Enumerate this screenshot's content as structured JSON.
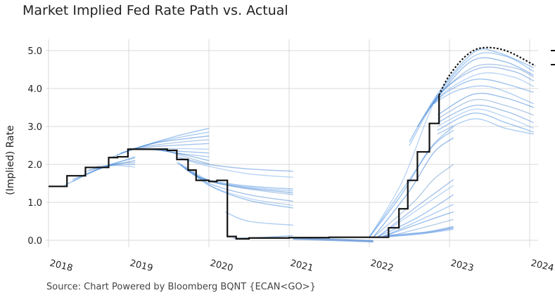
{
  "chart_data": {
    "type": "line",
    "title": "Market Implied Fed Rate Path vs. Actual",
    "ylabel": "(Implied) Rate",
    "xlabel": "",
    "source": "Source: Chart Powered by Bloomberg BQNT    {ECAN<GO>}",
    "xlim": [
      2018,
      2024
    ],
    "ylim": [
      -0.1,
      5.2
    ],
    "x_ticks": [
      "2018",
      "2019",
      "2020",
      "2021",
      "2022",
      "2023",
      "2024"
    ],
    "y_ticks": [
      "0.0",
      "1.0",
      "2.0",
      "3.0",
      "4.0",
      "5.0"
    ],
    "grid": true,
    "legend": "right (cropped)",
    "colors": {
      "actual": "#111111",
      "implied": "#2f7fdc",
      "projection": "#111111"
    },
    "actual_step": [
      [
        2018.0,
        1.42
      ],
      [
        2018.23,
        1.7
      ],
      [
        2018.46,
        1.92
      ],
      [
        2018.75,
        2.18
      ],
      [
        2018.86,
        2.2
      ],
      [
        2018.99,
        2.4
      ],
      [
        2019.48,
        2.37
      ],
      [
        2019.6,
        2.13
      ],
      [
        2019.74,
        1.85
      ],
      [
        2019.84,
        1.58
      ],
      [
        2020.0,
        1.55
      ],
      [
        2020.1,
        1.58
      ],
      [
        2020.23,
        0.1
      ],
      [
        2020.34,
        0.04
      ],
      [
        2020.5,
        0.06
      ],
      [
        2021.0,
        0.07
      ],
      [
        2021.5,
        0.08
      ],
      [
        2022.24,
        0.33
      ],
      [
        2022.37,
        0.83
      ],
      [
        2022.48,
        1.58
      ],
      [
        2022.6,
        2.33
      ],
      [
        2022.75,
        3.08
      ],
      [
        2022.87,
        3.83
      ]
    ],
    "projection": [
      [
        2022.87,
        3.83
      ],
      [
        2023.0,
        4.35
      ],
      [
        2023.2,
        4.85
      ],
      [
        2023.4,
        5.07
      ],
      [
        2023.7,
        5.0
      ],
      [
        2024.07,
        4.6
      ]
    ],
    "implied_paths": [
      [
        [
          2018.2,
          1.45
        ],
        [
          2018.6,
          1.85
        ],
        [
          2019.08,
          2.2
        ]
      ],
      [
        [
          2018.3,
          1.55
        ],
        [
          2018.7,
          1.95
        ],
        [
          2019.08,
          2.17
        ]
      ],
      [
        [
          2018.3,
          1.6
        ],
        [
          2018.7,
          1.93
        ],
        [
          2019.08,
          2.1
        ]
      ],
      [
        [
          2018.45,
          1.8
        ],
        [
          2018.8,
          2.0
        ],
        [
          2019.08,
          2.05
        ]
      ],
      [
        [
          2018.5,
          1.85
        ],
        [
          2018.8,
          1.98
        ],
        [
          2019.08,
          2.0
        ]
      ],
      [
        [
          2018.6,
          1.95
        ],
        [
          2018.85,
          1.97
        ],
        [
          2019.08,
          1.93
        ]
      ],
      [
        [
          2018.8,
          2.2
        ],
        [
          2019.2,
          2.5
        ],
        [
          2019.6,
          2.75
        ],
        [
          2020.0,
          2.95
        ]
      ],
      [
        [
          2018.85,
          2.25
        ],
        [
          2019.2,
          2.5
        ],
        [
          2019.6,
          2.7
        ],
        [
          2020.0,
          2.85
        ]
      ],
      [
        [
          2018.9,
          2.3
        ],
        [
          2019.3,
          2.55
        ],
        [
          2019.6,
          2.65
        ],
        [
          2020.0,
          2.75
        ]
      ],
      [
        [
          2019.0,
          2.4
        ],
        [
          2019.3,
          2.5
        ],
        [
          2019.7,
          2.6
        ],
        [
          2020.0,
          2.65
        ]
      ],
      [
        [
          2019.05,
          2.4
        ],
        [
          2019.4,
          2.48
        ],
        [
          2020.0,
          2.55
        ]
      ],
      [
        [
          2019.1,
          2.4
        ],
        [
          2019.5,
          2.42
        ],
        [
          2020.0,
          2.4
        ]
      ],
      [
        [
          2019.2,
          2.4
        ],
        [
          2019.6,
          2.35
        ],
        [
          2020.0,
          2.3
        ]
      ],
      [
        [
          2019.3,
          2.4
        ],
        [
          2019.6,
          2.3
        ],
        [
          2020.0,
          2.2
        ]
      ],
      [
        [
          2019.4,
          2.38
        ],
        [
          2019.7,
          2.25
        ],
        [
          2020.0,
          2.1
        ]
      ],
      [
        [
          2019.45,
          2.38
        ],
        [
          2019.7,
          2.2
        ],
        [
          2020.0,
          2.02
        ]
      ],
      [
        [
          2019.6,
          2.2
        ],
        [
          2020.0,
          2.0
        ],
        [
          2020.5,
          1.88
        ],
        [
          2021.05,
          1.82
        ]
      ],
      [
        [
          2019.65,
          2.15
        ],
        [
          2020.0,
          1.95
        ],
        [
          2020.5,
          1.75
        ],
        [
          2021.05,
          1.66
        ]
      ],
      [
        [
          2019.6,
          2.05
        ],
        [
          2019.9,
          1.65
        ],
        [
          2020.4,
          1.45
        ],
        [
          2021.05,
          1.35
        ]
      ],
      [
        [
          2019.62,
          2.05
        ],
        [
          2019.9,
          1.63
        ],
        [
          2020.4,
          1.42
        ],
        [
          2021.05,
          1.3
        ]
      ],
      [
        [
          2019.65,
          2.0
        ],
        [
          2019.95,
          1.6
        ],
        [
          2020.4,
          1.4
        ],
        [
          2021.05,
          1.25
        ]
      ],
      [
        [
          2019.7,
          1.95
        ],
        [
          2020.0,
          1.58
        ],
        [
          2020.4,
          1.38
        ],
        [
          2021.05,
          1.2
        ]
      ],
      [
        [
          2019.7,
          1.9
        ],
        [
          2020.0,
          1.5
        ],
        [
          2020.5,
          1.2
        ],
        [
          2021.05,
          1.03
        ]
      ],
      [
        [
          2019.75,
          1.85
        ],
        [
          2020.0,
          1.45
        ],
        [
          2020.5,
          1.1
        ],
        [
          2021.05,
          0.92
        ]
      ],
      [
        [
          2019.8,
          1.8
        ],
        [
          2020.05,
          1.4
        ],
        [
          2020.5,
          1.05
        ],
        [
          2021.05,
          0.85
        ]
      ],
      [
        [
          2020.2,
          0.75
        ],
        [
          2020.5,
          0.5
        ],
        [
          2021.05,
          0.4
        ]
      ],
      [
        [
          2020.3,
          0.05
        ],
        [
          2020.7,
          0.08
        ],
        [
          2021.05,
          0.12
        ]
      ],
      [
        [
          2021.05,
          0.06
        ],
        [
          2021.5,
          0.03
        ],
        [
          2022.05,
          -0.02
        ]
      ],
      [
        [
          2021.05,
          0.04
        ],
        [
          2021.5,
          0.01
        ],
        [
          2022.05,
          -0.03
        ]
      ],
      [
        [
          2022.0,
          0.08
        ],
        [
          2022.4,
          1.5
        ],
        [
          2022.7,
          3.1
        ],
        [
          2022.85,
          3.85
        ]
      ],
      [
        [
          2022.0,
          0.08
        ],
        [
          2022.4,
          1.2
        ],
        [
          2022.75,
          2.4
        ],
        [
          2023.05,
          3.0
        ]
      ],
      [
        [
          2022.0,
          0.08
        ],
        [
          2022.5,
          1.6
        ],
        [
          2022.8,
          2.5
        ],
        [
          2023.05,
          2.9
        ]
      ],
      [
        [
          2022.05,
          0.08
        ],
        [
          2022.5,
          1.3
        ],
        [
          2022.8,
          2.3
        ],
        [
          2023.05,
          2.7
        ]
      ],
      [
        [
          2022.05,
          0.08
        ],
        [
          2022.55,
          1.0
        ],
        [
          2022.8,
          1.6
        ],
        [
          2023.05,
          2.0
        ]
      ],
      [
        [
          2022.1,
          0.08
        ],
        [
          2022.6,
          0.9
        ],
        [
          2023.05,
          1.6
        ]
      ],
      [
        [
          2022.1,
          0.08
        ],
        [
          2022.6,
          0.8
        ],
        [
          2023.05,
          1.45
        ]
      ],
      [
        [
          2022.1,
          0.08
        ],
        [
          2022.6,
          0.6
        ],
        [
          2023.05,
          1.2
        ]
      ],
      [
        [
          2022.15,
          0.08
        ],
        [
          2022.6,
          0.5
        ],
        [
          2023.05,
          0.95
        ]
      ],
      [
        [
          2022.15,
          0.08
        ],
        [
          2022.7,
          0.5
        ],
        [
          2023.05,
          0.75
        ]
      ],
      [
        [
          2022.2,
          0.08
        ],
        [
          2022.7,
          0.35
        ],
        [
          2023.05,
          0.55
        ]
      ],
      [
        [
          2022.2,
          0.1
        ],
        [
          2022.7,
          0.2
        ],
        [
          2023.05,
          0.35
        ]
      ],
      [
        [
          2022.25,
          0.12
        ],
        [
          2022.7,
          0.2
        ],
        [
          2023.05,
          0.3
        ]
      ],
      [
        [
          2022.5,
          2.6
        ],
        [
          2022.85,
          3.85
        ],
        [
          2023.3,
          4.95
        ],
        [
          2023.6,
          4.95
        ],
        [
          2024.05,
          4.55
        ]
      ],
      [
        [
          2022.5,
          2.5
        ],
        [
          2022.85,
          3.8
        ],
        [
          2023.3,
          4.85
        ],
        [
          2023.7,
          4.85
        ],
        [
          2024.05,
          4.45
        ]
      ],
      [
        [
          2022.6,
          3.0
        ],
        [
          2022.9,
          3.9
        ],
        [
          2023.3,
          4.75
        ],
        [
          2023.7,
          4.7
        ],
        [
          2024.05,
          4.35
        ]
      ],
      [
        [
          2022.7,
          3.3
        ],
        [
          2022.95,
          4.0
        ],
        [
          2023.35,
          4.6
        ],
        [
          2023.8,
          4.55
        ],
        [
          2024.05,
          4.3
        ]
      ],
      [
        [
          2022.75,
          3.5
        ],
        [
          2023.0,
          4.1
        ],
        [
          2023.4,
          4.55
        ],
        [
          2023.8,
          4.45
        ],
        [
          2024.05,
          4.2
        ]
      ],
      [
        [
          2022.75,
          3.5
        ],
        [
          2023.0,
          4.0
        ],
        [
          2023.4,
          4.4
        ],
        [
          2023.8,
          4.3
        ],
        [
          2024.05,
          4.05
        ]
      ],
      [
        [
          2022.8,
          3.6
        ],
        [
          2023.0,
          3.95
        ],
        [
          2023.4,
          4.25
        ],
        [
          2024.05,
          3.9
        ]
      ],
      [
        [
          2022.8,
          3.6
        ],
        [
          2023.1,
          3.95
        ],
        [
          2023.5,
          4.05
        ],
        [
          2024.05,
          3.6
        ]
      ],
      [
        [
          2022.85,
          3.3
        ],
        [
          2023.3,
          3.85
        ],
        [
          2023.7,
          3.75
        ],
        [
          2024.05,
          3.5
        ]
      ],
      [
        [
          2022.85,
          3.2
        ],
        [
          2023.3,
          3.7
        ],
        [
          2023.7,
          3.55
        ],
        [
          2024.05,
          3.3
        ]
      ],
      [
        [
          2022.85,
          3.1
        ],
        [
          2023.3,
          3.55
        ],
        [
          2023.7,
          3.4
        ],
        [
          2024.05,
          3.1
        ]
      ],
      [
        [
          2022.85,
          3.0
        ],
        [
          2023.3,
          3.45
        ],
        [
          2023.7,
          3.25
        ],
        [
          2024.05,
          2.95
        ]
      ],
      [
        [
          2022.85,
          2.9
        ],
        [
          2023.3,
          3.35
        ],
        [
          2023.7,
          3.1
        ],
        [
          2024.05,
          2.85
        ]
      ],
      [
        [
          2022.85,
          2.8
        ],
        [
          2023.3,
          3.2
        ],
        [
          2023.7,
          2.95
        ],
        [
          2024.05,
          2.8
        ]
      ]
    ]
  }
}
